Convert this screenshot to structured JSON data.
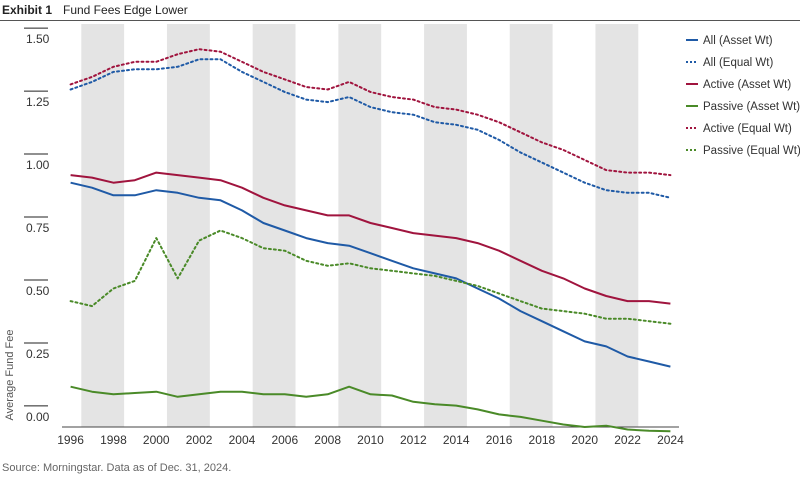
{
  "header": {
    "exhibit_label": "Exhibit 1",
    "title": "Fund Fees Edge Lower"
  },
  "footer": {
    "source": "Source: Morningstar.  Data as of Dec. 31, 2024."
  },
  "chart_data": {
    "type": "line",
    "title": "Fund Fees Edge Lower",
    "xlabel": "",
    "ylabel": "Average Fund Fee",
    "xlim": [
      1995.6,
      2024.4
    ],
    "ylim": [
      -0.04,
      1.56
    ],
    "y_tick_values": [
      0.0,
      0.25,
      0.5,
      0.75,
      1.0,
      1.25,
      1.5
    ],
    "y_tick_labels": [
      "0.00",
      "0.25",
      "0.50",
      "0.75",
      "1.00",
      "1.25",
      "1.50"
    ],
    "x_tick_values": [
      1996,
      1998,
      2000,
      2002,
      2004,
      2006,
      2008,
      2010,
      2012,
      2014,
      2016,
      2018,
      2020,
      2022,
      2024
    ],
    "x_tick_labels": [
      "1996",
      "1998",
      "2000",
      "2002",
      "2004",
      "2006",
      "2008",
      "2010",
      "2012",
      "2014",
      "2016",
      "2018",
      "2020",
      "2022",
      "2024"
    ],
    "grid": false,
    "alternating_bands": true,
    "band_color": "#e4e4e4",
    "legend_position": "right",
    "x": [
      1996,
      1997,
      1998,
      1999,
      2000,
      2001,
      2002,
      2003,
      2004,
      2005,
      2006,
      2007,
      2008,
      2009,
      2010,
      2011,
      2012,
      2013,
      2014,
      2015,
      2016,
      2017,
      2018,
      2019,
      2020,
      2021,
      2022,
      2023,
      2024
    ],
    "series": [
      {
        "name": "All (Asset Wt)",
        "color": "#1f5aa6",
        "style": "solid",
        "values": [
          0.93,
          0.91,
          0.88,
          0.88,
          0.9,
          0.89,
          0.87,
          0.86,
          0.82,
          0.77,
          0.74,
          0.71,
          0.69,
          0.68,
          0.65,
          0.62,
          0.59,
          0.57,
          0.55,
          0.51,
          0.47,
          0.42,
          0.38,
          0.34,
          0.3,
          0.28,
          0.24,
          0.22,
          0.2
        ]
      },
      {
        "name": "All (Equal Wt)",
        "color": "#1f5aa6",
        "style": "dotted",
        "values": [
          1.3,
          1.33,
          1.37,
          1.38,
          1.38,
          1.39,
          1.42,
          1.42,
          1.37,
          1.33,
          1.29,
          1.26,
          1.25,
          1.27,
          1.23,
          1.21,
          1.2,
          1.17,
          1.16,
          1.14,
          1.1,
          1.05,
          1.01,
          0.97,
          0.93,
          0.9,
          0.89,
          0.89,
          0.87
        ]
      },
      {
        "name": "Active (Asset Wt)",
        "color": "#a0143e",
        "style": "solid",
        "values": [
          0.96,
          0.95,
          0.93,
          0.94,
          0.97,
          0.96,
          0.95,
          0.94,
          0.91,
          0.87,
          0.84,
          0.82,
          0.8,
          0.8,
          0.77,
          0.75,
          0.73,
          0.72,
          0.71,
          0.69,
          0.66,
          0.62,
          0.58,
          0.55,
          0.51,
          0.48,
          0.46,
          0.46,
          0.45
        ]
      },
      {
        "name": "Passive (Asset Wt)",
        "color": "#4a8a28",
        "style": "solid",
        "values": [
          0.12,
          0.1,
          0.09,
          0.095,
          0.1,
          0.08,
          0.09,
          0.1,
          0.1,
          0.09,
          0.09,
          0.08,
          0.09,
          0.12,
          0.09,
          0.085,
          0.06,
          0.05,
          0.045,
          0.03,
          0.01,
          0.0,
          -0.015,
          -0.03,
          -0.04,
          -0.035,
          -0.05,
          -0.055,
          -0.057
        ]
      },
      {
        "name": "Active (Equal Wt)",
        "color": "#a0143e",
        "style": "dotted",
        "values": [
          1.32,
          1.35,
          1.39,
          1.41,
          1.41,
          1.44,
          1.46,
          1.45,
          1.41,
          1.37,
          1.34,
          1.31,
          1.3,
          1.33,
          1.29,
          1.27,
          1.26,
          1.23,
          1.22,
          1.2,
          1.17,
          1.13,
          1.09,
          1.06,
          1.02,
          0.98,
          0.97,
          0.97,
          0.96
        ]
      },
      {
        "name": "Passive (Equal Wt)",
        "color": "#4a8a28",
        "style": "dotted",
        "values": [
          0.46,
          0.44,
          0.51,
          0.54,
          0.71,
          0.55,
          0.7,
          0.74,
          0.71,
          0.67,
          0.66,
          0.62,
          0.6,
          0.61,
          0.59,
          0.58,
          0.57,
          0.56,
          0.54,
          0.52,
          0.49,
          0.46,
          0.43,
          0.42,
          0.41,
          0.39,
          0.39,
          0.38,
          0.37
        ]
      }
    ]
  }
}
